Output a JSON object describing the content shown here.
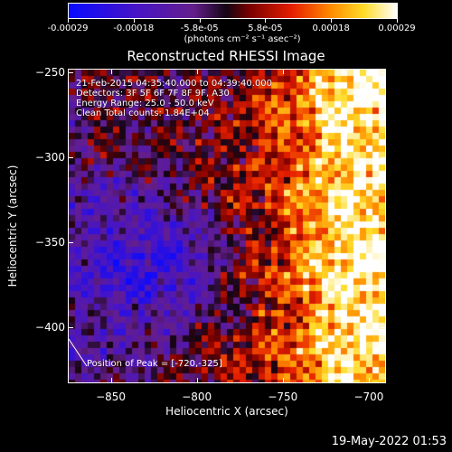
{
  "colorbar": {
    "ticks": [
      "-0.00029",
      "-0.00018",
      "-5.8e-05",
      "5.8e-05",
      "0.00018",
      "0.00029"
    ],
    "units": "(photons cm⁻² s⁻¹ asec⁻²)",
    "range": [
      -0.00029,
      0.00029
    ]
  },
  "annotations": {
    "time_range": "21-Feb-2015 04:35:40.000 to 04:39:40.000",
    "detectors": "Detectors: 3F 5F 6F 7F 8F 9F, A30",
    "energy": "Energy Range: 25.0 - 50.0 keV",
    "clean": "Clean      Total counts: 1.84E+04",
    "peak": "Position of Peak = [-720,-325]"
  },
  "timestamp": "19-May-2022 01:53",
  "chart_data": {
    "type": "heatmap",
    "title": "Reconstructed RHESSI Image",
    "xlabel": "Heliocentric X (arcsec)",
    "ylabel": "Heliocentric Y (arcsec)",
    "xlim": [
      -875,
      -690
    ],
    "ylim": [
      -433,
      -248
    ],
    "xticks": [
      -850,
      -800,
      -750,
      -700
    ],
    "yticks": [
      -250,
      -300,
      -350,
      -400
    ],
    "peak": [
      -720,
      -325
    ],
    "colormap": "rhessi-blue-purple-red-yellow-white"
  }
}
